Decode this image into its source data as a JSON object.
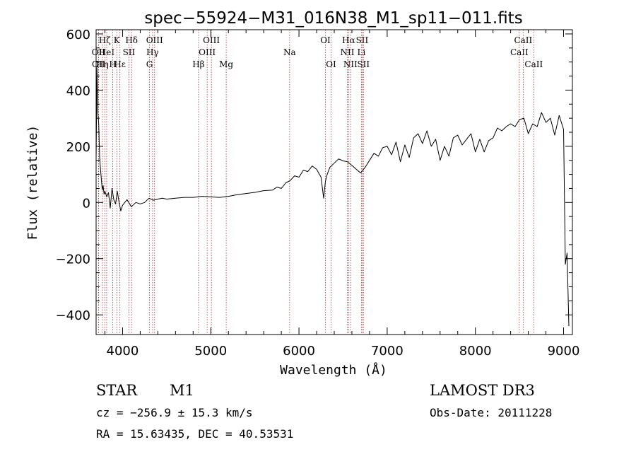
{
  "info": {
    "object_class": "STAR",
    "subclass": "M1",
    "survey": "LAMOST DR3",
    "cz": "cz = −256.9 ± 15.3 km/s",
    "obs_date": "Obs-Date: 20111228",
    "radec": "RA =  15.63435, DEC =  40.53531"
  },
  "chart_data": {
    "type": "line",
    "title": "spec−55924−M31_016N38_M1_sp11−011.fits",
    "xlabel": "Wavelength (Å)",
    "ylabel": "Flux (relative)",
    "xlim": [
      3700,
      9100
    ],
    "ylim": [
      -470,
      615
    ],
    "xticks": [
      4000,
      5000,
      6000,
      7000,
      8000,
      9000
    ],
    "yticks": [
      -400,
      -200,
      0,
      200,
      400,
      600
    ],
    "ytick_labels": [
      "−400",
      "−200",
      "0",
      "200",
      "400",
      "600"
    ],
    "series": [
      {
        "name": "flux",
        "color": "#000000",
        "x": [
          3700,
          3710,
          3720,
          3730,
          3740,
          3750,
          3760,
          3770,
          3780,
          3790,
          3800,
          3820,
          3840,
          3860,
          3880,
          3900,
          3920,
          3940,
          3960,
          3980,
          4000,
          4050,
          4100,
          4150,
          4200,
          4250,
          4300,
          4350,
          4400,
          4450,
          4500,
          4600,
          4700,
          4800,
          4900,
          5000,
          5100,
          5200,
          5300,
          5400,
          5500,
          5600,
          5700,
          5750,
          5800,
          5850,
          5900,
          5950,
          6000,
          6050,
          6100,
          6150,
          6200,
          6250,
          6280,
          6300,
          6320,
          6350,
          6400,
          6450,
          6500,
          6550,
          6600,
          6650,
          6700,
          6750,
          6800,
          6850,
          6900,
          6950,
          7000,
          7050,
          7100,
          7150,
          7200,
          7250,
          7300,
          7350,
          7400,
          7450,
          7500,
          7550,
          7600,
          7650,
          7700,
          7750,
          7800,
          7850,
          7900,
          7950,
          8000,
          8050,
          8100,
          8150,
          8200,
          8250,
          8300,
          8350,
          8400,
          8450,
          8500,
          8550,
          8600,
          8650,
          8700,
          8750,
          8800,
          8850,
          8900,
          8950,
          9000,
          9020,
          9040,
          9060
        ],
        "y": [
          150,
          480,
          320,
          280,
          160,
          120,
          80,
          45,
          60,
          30,
          40,
          20,
          35,
          -20,
          50,
          10,
          -5,
          40,
          0,
          -30,
          -10,
          10,
          -15,
          0,
          -5,
          0,
          15,
          8,
          12,
          15,
          12,
          15,
          18,
          18,
          22,
          20,
          18,
          22,
          28,
          32,
          36,
          42,
          44,
          55,
          50,
          70,
          78,
          95,
          90,
          115,
          110,
          130,
          118,
          90,
          15,
          75,
          100,
          125,
          140,
          155,
          148,
          145,
          132,
          118,
          105,
          125,
          150,
          175,
          165,
          195,
          200,
          170,
          215,
          145,
          205,
          160,
          230,
          245,
          210,
          255,
          200,
          225,
          150,
          200,
          165,
          230,
          240,
          205,
          225,
          245,
          180,
          225,
          180,
          220,
          230,
          265,
          255,
          270,
          280,
          270,
          295,
          300,
          245,
          280,
          270,
          320,
          285,
          300,
          240,
          310,
          260,
          -220,
          -180,
          -440
        ]
      }
    ],
    "lines": [
      {
        "wave": 3727,
        "label": "OII",
        "row": 1
      },
      {
        "wave": 3729,
        "label": "OII",
        "row": 2
      },
      {
        "wave": 3771,
        "label": "Hη",
        "row": 2
      },
      {
        "wave": 3798,
        "label": "Hζ",
        "row": 0
      },
      {
        "wave": 3820,
        "label": "HeI",
        "row": 1
      },
      {
        "wave": 3889,
        "label": "H",
        "row": 2
      },
      {
        "wave": 3934,
        "label": "K",
        "row": 0
      },
      {
        "wave": 3970,
        "label": "Hε",
        "row": 2
      },
      {
        "wave": 4072,
        "label": "SII",
        "row": 1
      },
      {
        "wave": 4102,
        "label": "Hδ",
        "row": 0
      },
      {
        "wave": 4305,
        "label": "G",
        "row": 2
      },
      {
        "wave": 4340,
        "label": "Hγ",
        "row": 1
      },
      {
        "wave": 4363,
        "label": "OIII",
        "row": 0
      },
      {
        "wave": 4861,
        "label": "Hβ",
        "row": 2
      },
      {
        "wave": 4959,
        "label": "OIII",
        "row": 1
      },
      {
        "wave": 5007,
        "label": "OIII",
        "row": 0
      },
      {
        "wave": 5175,
        "label": "Mg",
        "row": 2
      },
      {
        "wave": 5894,
        "label": "Na",
        "row": 1
      },
      {
        "wave": 6300,
        "label": "OI",
        "row": 0
      },
      {
        "wave": 6364,
        "label": "OI",
        "row": 2
      },
      {
        "wave": 6548,
        "label": "NII",
        "row": 1
      },
      {
        "wave": 6563,
        "label": "Hα",
        "row": 0
      },
      {
        "wave": 6583,
        "label": "NII",
        "row": 2
      },
      {
        "wave": 6708,
        "label": "Li",
        "row": 1
      },
      {
        "wave": 6716,
        "label": "SII",
        "row": 0
      },
      {
        "wave": 6731,
        "label": "SII",
        "row": 2
      },
      {
        "wave": 8498,
        "label": "CaII",
        "row": 1
      },
      {
        "wave": 8542,
        "label": "CaII",
        "row": 0
      },
      {
        "wave": 8662,
        "label": "CaII",
        "row": 2
      }
    ]
  }
}
